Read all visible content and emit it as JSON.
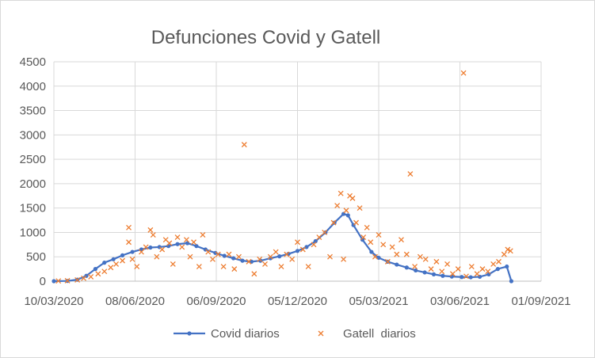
{
  "chart_data": {
    "type": "scatter",
    "title": "Defunciones Covid y Gatell",
    "xlabel": "",
    "ylabel": "",
    "x_range": [
      "2020-03-10",
      "2021-09-01"
    ],
    "ylim": [
      0,
      4500
    ],
    "x_ticks": [
      "10/03/2020",
      "08/06/2020",
      "06/09/2020",
      "05/12/2020",
      "05/03/2021",
      "03/06/2021",
      "01/09/2021"
    ],
    "y_ticks": [
      "0",
      "500",
      "1000",
      "1500",
      "2000",
      "2500",
      "3000",
      "3500",
      "4000",
      "4500"
    ],
    "grid": "vertical and horizontal",
    "legend_position": "bottom",
    "series": [
      {
        "name": "Covid diarios",
        "marker": "line with dot markers",
        "color": "#4472c4",
        "points": [
          [
            "2020-03-10",
            0
          ],
          [
            "2020-03-25",
            5
          ],
          [
            "2020-04-05",
            30
          ],
          [
            "2020-04-15",
            110
          ],
          [
            "2020-04-25",
            250
          ],
          [
            "2020-05-05",
            380
          ],
          [
            "2020-05-15",
            450
          ],
          [
            "2020-05-25",
            530
          ],
          [
            "2020-06-05",
            600
          ],
          [
            "2020-06-15",
            650
          ],
          [
            "2020-06-25",
            690
          ],
          [
            "2020-07-05",
            700
          ],
          [
            "2020-07-15",
            720
          ],
          [
            "2020-07-25",
            760
          ],
          [
            "2020-08-05",
            780
          ],
          [
            "2020-08-15",
            720
          ],
          [
            "2020-08-25",
            650
          ],
          [
            "2020-09-05",
            580
          ],
          [
            "2020-09-15",
            520
          ],
          [
            "2020-09-25",
            470
          ],
          [
            "2020-10-05",
            420
          ],
          [
            "2020-10-15",
            400
          ],
          [
            "2020-10-25",
            420
          ],
          [
            "2020-11-05",
            470
          ],
          [
            "2020-11-15",
            510
          ],
          [
            "2020-11-25",
            560
          ],
          [
            "2020-12-05",
            620
          ],
          [
            "2020-12-15",
            700
          ],
          [
            "2020-12-25",
            820
          ],
          [
            "2021-01-05",
            1000
          ],
          [
            "2021-01-15",
            1200
          ],
          [
            "2021-01-25",
            1380
          ],
          [
            "2021-01-30",
            1350
          ],
          [
            "2021-02-05",
            1150
          ],
          [
            "2021-02-15",
            850
          ],
          [
            "2021-02-25",
            600
          ],
          [
            "2021-03-05",
            480
          ],
          [
            "2021-03-15",
            400
          ],
          [
            "2021-03-25",
            340
          ],
          [
            "2021-04-05",
            280
          ],
          [
            "2021-04-15",
            220
          ],
          [
            "2021-04-25",
            180
          ],
          [
            "2021-05-05",
            140
          ],
          [
            "2021-05-15",
            110
          ],
          [
            "2021-05-25",
            95
          ],
          [
            "2021-06-05",
            85
          ],
          [
            "2021-06-15",
            80
          ],
          [
            "2021-06-25",
            90
          ],
          [
            "2021-07-05",
            140
          ],
          [
            "2021-07-15",
            250
          ],
          [
            "2021-07-25",
            300
          ],
          [
            "2021-07-30",
            0
          ]
        ]
      },
      {
        "name": "Gatell  diarios",
        "marker": "x",
        "color": "#ed7d31",
        "points": [
          [
            "2020-03-15",
            5
          ],
          [
            "2020-03-25",
            10
          ],
          [
            "2020-04-05",
            25
          ],
          [
            "2020-04-12",
            60
          ],
          [
            "2020-04-20",
            90
          ],
          [
            "2020-04-28",
            150
          ],
          [
            "2020-05-05",
            200
          ],
          [
            "2020-05-12",
            280
          ],
          [
            "2020-05-18",
            350
          ],
          [
            "2020-05-25",
            420
          ],
          [
            "2020-06-01",
            1100
          ],
          [
            "2020-06-01",
            800
          ],
          [
            "2020-06-05",
            450
          ],
          [
            "2020-06-10",
            300
          ],
          [
            "2020-06-15",
            600
          ],
          [
            "2020-06-20",
            700
          ],
          [
            "2020-06-25",
            1050
          ],
          [
            "2020-06-28",
            950
          ],
          [
            "2020-07-02",
            500
          ],
          [
            "2020-07-08",
            650
          ],
          [
            "2020-07-12",
            850
          ],
          [
            "2020-07-16",
            780
          ],
          [
            "2020-07-20",
            350
          ],
          [
            "2020-07-25",
            900
          ],
          [
            "2020-07-30",
            700
          ],
          [
            "2020-08-04",
            850
          ],
          [
            "2020-08-08",
            500
          ],
          [
            "2020-08-12",
            800
          ],
          [
            "2020-08-18",
            300
          ],
          [
            "2020-08-22",
            950
          ],
          [
            "2020-08-28",
            600
          ],
          [
            "2020-09-02",
            450
          ],
          [
            "2020-09-08",
            550
          ],
          [
            "2020-09-14",
            300
          ],
          [
            "2020-09-20",
            550
          ],
          [
            "2020-09-26",
            250
          ],
          [
            "2020-10-01",
            500
          ],
          [
            "2020-10-07",
            2800
          ],
          [
            "2020-10-12",
            400
          ],
          [
            "2020-10-18",
            150
          ],
          [
            "2020-10-24",
            450
          ],
          [
            "2020-10-30",
            350
          ],
          [
            "2020-11-05",
            500
          ],
          [
            "2020-11-11",
            600
          ],
          [
            "2020-11-17",
            300
          ],
          [
            "2020-11-23",
            550
          ],
          [
            "2020-11-29",
            450
          ],
          [
            "2020-12-05",
            800
          ],
          [
            "2020-12-11",
            650
          ],
          [
            "2020-12-17",
            300
          ],
          [
            "2020-12-23",
            750
          ],
          [
            "2020-12-29",
            900
          ],
          [
            "2021-01-04",
            1000
          ],
          [
            "2021-01-10",
            500
          ],
          [
            "2021-01-14",
            1200
          ],
          [
            "2021-01-18",
            1550
          ],
          [
            "2021-01-22",
            1800
          ],
          [
            "2021-01-25",
            450
          ],
          [
            "2021-01-28",
            1450
          ],
          [
            "2021-02-01",
            1750
          ],
          [
            "2021-02-04",
            1700
          ],
          [
            "2021-02-08",
            1200
          ],
          [
            "2021-02-12",
            1500
          ],
          [
            "2021-02-16",
            900
          ],
          [
            "2021-02-20",
            1100
          ],
          [
            "2021-02-24",
            800
          ],
          [
            "2021-03-01",
            500
          ],
          [
            "2021-03-05",
            950
          ],
          [
            "2021-03-10",
            750
          ],
          [
            "2021-03-15",
            400
          ],
          [
            "2021-03-20",
            700
          ],
          [
            "2021-03-25",
            550
          ],
          [
            "2021-03-30",
            850
          ],
          [
            "2021-04-05",
            550
          ],
          [
            "2021-04-09",
            2200
          ],
          [
            "2021-04-14",
            300
          ],
          [
            "2021-04-20",
            500
          ],
          [
            "2021-04-26",
            450
          ],
          [
            "2021-05-02",
            250
          ],
          [
            "2021-05-08",
            400
          ],
          [
            "2021-05-14",
            200
          ],
          [
            "2021-05-20",
            350
          ],
          [
            "2021-05-26",
            150
          ],
          [
            "2021-06-01",
            250
          ],
          [
            "2021-06-07",
            4270
          ],
          [
            "2021-06-10",
            100
          ],
          [
            "2021-06-16",
            300
          ],
          [
            "2021-06-22",
            150
          ],
          [
            "2021-06-28",
            250
          ],
          [
            "2021-07-04",
            200
          ],
          [
            "2021-07-10",
            350
          ],
          [
            "2021-07-16",
            400
          ],
          [
            "2021-07-22",
            550
          ],
          [
            "2021-07-26",
            650
          ],
          [
            "2021-07-29",
            620
          ]
        ]
      }
    ]
  }
}
